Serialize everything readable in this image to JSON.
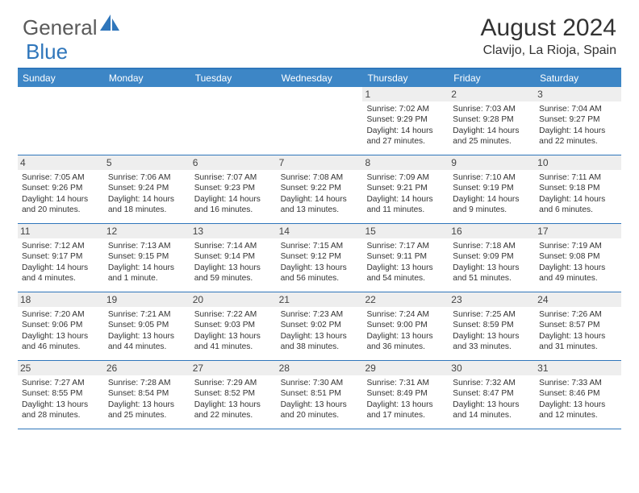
{
  "logo": {
    "part1": "General",
    "part2": "Blue"
  },
  "title": "August 2024",
  "location": "Clavijo, La Rioja, Spain",
  "colors": {
    "accent": "#3d86c6",
    "border": "#2f76bb",
    "daynum_bg": "#eeeeee",
    "text": "#333333"
  },
  "dow": [
    "Sunday",
    "Monday",
    "Tuesday",
    "Wednesday",
    "Thursday",
    "Friday",
    "Saturday"
  ],
  "weeks": [
    [
      null,
      null,
      null,
      null,
      {
        "n": "1",
        "sr": "7:02 AM",
        "ss": "9:29 PM",
        "dl": "14 hours and 27 minutes."
      },
      {
        "n": "2",
        "sr": "7:03 AM",
        "ss": "9:28 PM",
        "dl": "14 hours and 25 minutes."
      },
      {
        "n": "3",
        "sr": "7:04 AM",
        "ss": "9:27 PM",
        "dl": "14 hours and 22 minutes."
      }
    ],
    [
      {
        "n": "4",
        "sr": "7:05 AM",
        "ss": "9:26 PM",
        "dl": "14 hours and 20 minutes."
      },
      {
        "n": "5",
        "sr": "7:06 AM",
        "ss": "9:24 PM",
        "dl": "14 hours and 18 minutes."
      },
      {
        "n": "6",
        "sr": "7:07 AM",
        "ss": "9:23 PM",
        "dl": "14 hours and 16 minutes."
      },
      {
        "n": "7",
        "sr": "7:08 AM",
        "ss": "9:22 PM",
        "dl": "14 hours and 13 minutes."
      },
      {
        "n": "8",
        "sr": "7:09 AM",
        "ss": "9:21 PM",
        "dl": "14 hours and 11 minutes."
      },
      {
        "n": "9",
        "sr": "7:10 AM",
        "ss": "9:19 PM",
        "dl": "14 hours and 9 minutes."
      },
      {
        "n": "10",
        "sr": "7:11 AM",
        "ss": "9:18 PM",
        "dl": "14 hours and 6 minutes."
      }
    ],
    [
      {
        "n": "11",
        "sr": "7:12 AM",
        "ss": "9:17 PM",
        "dl": "14 hours and 4 minutes."
      },
      {
        "n": "12",
        "sr": "7:13 AM",
        "ss": "9:15 PM",
        "dl": "14 hours and 1 minute."
      },
      {
        "n": "13",
        "sr": "7:14 AM",
        "ss": "9:14 PM",
        "dl": "13 hours and 59 minutes."
      },
      {
        "n": "14",
        "sr": "7:15 AM",
        "ss": "9:12 PM",
        "dl": "13 hours and 56 minutes."
      },
      {
        "n": "15",
        "sr": "7:17 AM",
        "ss": "9:11 PM",
        "dl": "13 hours and 54 minutes."
      },
      {
        "n": "16",
        "sr": "7:18 AM",
        "ss": "9:09 PM",
        "dl": "13 hours and 51 minutes."
      },
      {
        "n": "17",
        "sr": "7:19 AM",
        "ss": "9:08 PM",
        "dl": "13 hours and 49 minutes."
      }
    ],
    [
      {
        "n": "18",
        "sr": "7:20 AM",
        "ss": "9:06 PM",
        "dl": "13 hours and 46 minutes."
      },
      {
        "n": "19",
        "sr": "7:21 AM",
        "ss": "9:05 PM",
        "dl": "13 hours and 44 minutes."
      },
      {
        "n": "20",
        "sr": "7:22 AM",
        "ss": "9:03 PM",
        "dl": "13 hours and 41 minutes."
      },
      {
        "n": "21",
        "sr": "7:23 AM",
        "ss": "9:02 PM",
        "dl": "13 hours and 38 minutes."
      },
      {
        "n": "22",
        "sr": "7:24 AM",
        "ss": "9:00 PM",
        "dl": "13 hours and 36 minutes."
      },
      {
        "n": "23",
        "sr": "7:25 AM",
        "ss": "8:59 PM",
        "dl": "13 hours and 33 minutes."
      },
      {
        "n": "24",
        "sr": "7:26 AM",
        "ss": "8:57 PM",
        "dl": "13 hours and 31 minutes."
      }
    ],
    [
      {
        "n": "25",
        "sr": "7:27 AM",
        "ss": "8:55 PM",
        "dl": "13 hours and 28 minutes."
      },
      {
        "n": "26",
        "sr": "7:28 AM",
        "ss": "8:54 PM",
        "dl": "13 hours and 25 minutes."
      },
      {
        "n": "27",
        "sr": "7:29 AM",
        "ss": "8:52 PM",
        "dl": "13 hours and 22 minutes."
      },
      {
        "n": "28",
        "sr": "7:30 AM",
        "ss": "8:51 PM",
        "dl": "13 hours and 20 minutes."
      },
      {
        "n": "29",
        "sr": "7:31 AM",
        "ss": "8:49 PM",
        "dl": "13 hours and 17 minutes."
      },
      {
        "n": "30",
        "sr": "7:32 AM",
        "ss": "8:47 PM",
        "dl": "13 hours and 14 minutes."
      },
      {
        "n": "31",
        "sr": "7:33 AM",
        "ss": "8:46 PM",
        "dl": "13 hours and 12 minutes."
      }
    ]
  ],
  "labels": {
    "sunrise": "Sunrise: ",
    "sunset": "Sunset: ",
    "daylight": "Daylight: "
  }
}
